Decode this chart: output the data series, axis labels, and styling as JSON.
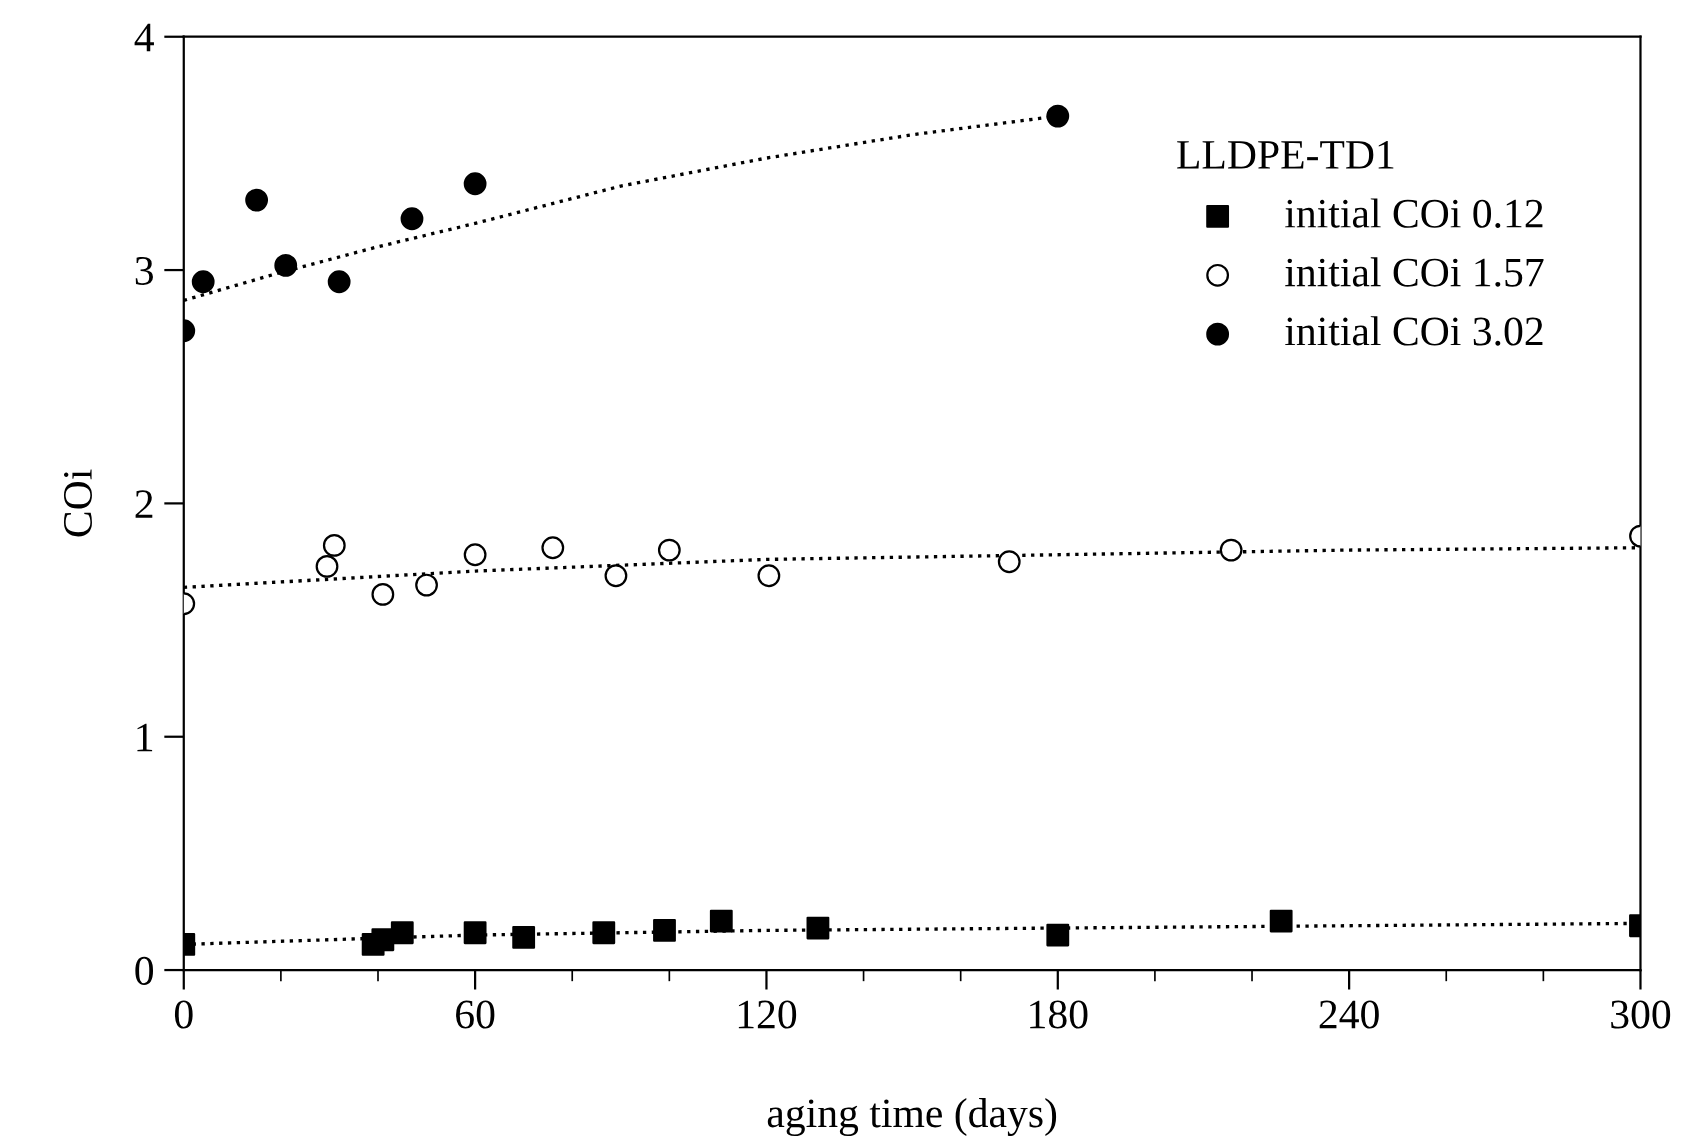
{
  "chart_data": {
    "type": "scatter",
    "xlabel": "aging time (days)",
    "ylabel": "COi",
    "legend_title": "LLDPE-TD1",
    "legend": "top right",
    "grid": false,
    "xlim": [
      0,
      300
    ],
    "ylim": [
      0,
      4
    ],
    "xticks": [
      0,
      60,
      120,
      180,
      240,
      300
    ],
    "yticks": [
      0,
      1,
      2,
      3,
      4
    ],
    "series": [
      {
        "name": "initial COi 0.12",
        "marker": "square",
        "color": "#000000",
        "x": [
          0,
          39,
          41,
          45,
          60,
          70,
          86.5,
          99,
          110.7,
          130.6,
          180,
          226,
          300
        ],
        "values": [
          0.11,
          0.11,
          0.13,
          0.16,
          0.16,
          0.14,
          0.16,
          0.17,
          0.21,
          0.18,
          0.15,
          0.21,
          0.19
        ]
      },
      {
        "name": "initial COi 1.57",
        "marker": "circle",
        "color": "#ffffff",
        "x": [
          0,
          29.5,
          31,
          41,
          50,
          60,
          76,
          89,
          100,
          120.5,
          170,
          215.7,
          300
        ],
        "values": [
          1.57,
          1.73,
          1.82,
          1.61,
          1.65,
          1.78,
          1.81,
          1.69,
          1.8,
          1.69,
          1.75,
          1.8,
          1.86
        ]
      },
      {
        "name": "initial COi 3.02",
        "marker": "circle",
        "color": "#000000",
        "x": [
          0,
          4,
          15,
          21,
          32,
          47,
          60,
          180
        ],
        "values": [
          2.74,
          2.95,
          3.3,
          3.02,
          2.95,
          3.22,
          3.37,
          3.66
        ]
      },
      {
        "type": "line",
        "line_style": "dotted",
        "marker": "none",
        "color": "#000000",
        "x": [
          0,
          60,
          120,
          180,
          240,
          300
        ],
        "values": [
          0.11,
          0.15,
          0.17,
          0.18,
          0.19,
          0.2
        ]
      },
      {
        "type": "line",
        "line_style": "dotted",
        "marker": "none",
        "color": "#000000",
        "x": [
          0,
          60,
          120,
          180,
          240,
          300
        ],
        "values": [
          1.64,
          1.71,
          1.76,
          1.78,
          1.8,
          1.81
        ]
      },
      {
        "type": "line",
        "line_style": "dotted",
        "marker": "none",
        "color": "#000000",
        "x": [
          0,
          20,
          40,
          60,
          90,
          120,
          150,
          180
        ],
        "values": [
          2.87,
          2.99,
          3.1,
          3.2,
          3.36,
          3.48,
          3.58,
          3.66
        ]
      }
    ]
  }
}
